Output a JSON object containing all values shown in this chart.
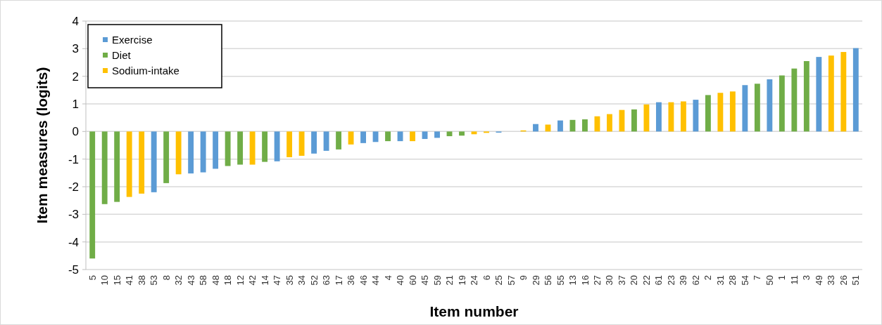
{
  "chart_data": {
    "type": "bar",
    "xlabel": "Item number",
    "ylabel": "Item measures (logits)",
    "categories": [
      "5",
      "10",
      "15",
      "41",
      "38",
      "53",
      "8",
      "32",
      "43",
      "58",
      "48",
      "18",
      "12",
      "42",
      "14",
      "47",
      "35",
      "34",
      "52",
      "63",
      "17",
      "36",
      "46",
      "44",
      "4",
      "40",
      "60",
      "45",
      "59",
      "21",
      "19",
      "24",
      "6",
      "25",
      "57",
      "9",
      "29",
      "56",
      "55",
      "13",
      "16",
      "27",
      "30",
      "37",
      "20",
      "22",
      "61",
      "23",
      "39",
      "62",
      "2",
      "31",
      "28",
      "54",
      "7",
      "50",
      "1",
      "11",
      "3",
      "49",
      "33",
      "26",
      "51"
    ],
    "series": [
      {
        "name": "Exercise",
        "color": "#5b9bd5",
        "values": [
          null,
          null,
          null,
          null,
          null,
          -2.2,
          null,
          null,
          -1.52,
          -1.48,
          -1.35,
          null,
          null,
          null,
          null,
          -1.08,
          null,
          null,
          -0.8,
          -0.7,
          null,
          null,
          -0.42,
          -0.38,
          null,
          -0.35,
          null,
          -0.27,
          -0.23,
          null,
          null,
          null,
          null,
          -0.04,
          null,
          null,
          0.27,
          null,
          0.4,
          null,
          null,
          null,
          null,
          null,
          null,
          null,
          1.06,
          null,
          null,
          1.15,
          null,
          null,
          null,
          1.68,
          null,
          1.89,
          null,
          null,
          null,
          2.7,
          null,
          null,
          3.02
        ]
      },
      {
        "name": "Diet",
        "color": "#70ad47",
        "values": [
          -4.6,
          -2.63,
          -2.55,
          null,
          null,
          null,
          -1.87,
          null,
          null,
          null,
          null,
          -1.25,
          -1.2,
          null,
          -1.1,
          null,
          null,
          null,
          null,
          null,
          -0.65,
          null,
          null,
          null,
          -0.35,
          null,
          null,
          null,
          null,
          -0.17,
          -0.15,
          null,
          null,
          null,
          null,
          null,
          null,
          null,
          null,
          0.42,
          0.44,
          null,
          null,
          null,
          0.8,
          null,
          null,
          null,
          null,
          null,
          1.32,
          null,
          null,
          null,
          1.73,
          null,
          2.03,
          2.28,
          2.55,
          null,
          null,
          null,
          null
        ]
      },
      {
        "name": "Sodium-intake",
        "color": "#ffc000",
        "values": [
          null,
          null,
          null,
          -2.37,
          -2.25,
          null,
          null,
          -1.55,
          null,
          null,
          null,
          null,
          null,
          -1.2,
          null,
          null,
          -0.93,
          -0.88,
          null,
          null,
          null,
          -0.47,
          null,
          null,
          null,
          null,
          -0.35,
          null,
          null,
          null,
          null,
          -0.1,
          -0.05,
          null,
          null,
          0.04,
          null,
          0.25,
          null,
          null,
          null,
          0.55,
          0.63,
          0.78,
          null,
          0.98,
          null,
          1.06,
          1.09,
          null,
          null,
          1.4,
          1.45,
          null,
          null,
          null,
          null,
          null,
          null,
          null,
          2.75,
          2.88,
          null
        ]
      }
    ],
    "ylim": [
      -5,
      4
    ],
    "yticks": [
      -5,
      -4,
      -3,
      -2,
      -1,
      0,
      1,
      2,
      3,
      4
    ],
    "grid": "y",
    "legend": "top left"
  }
}
